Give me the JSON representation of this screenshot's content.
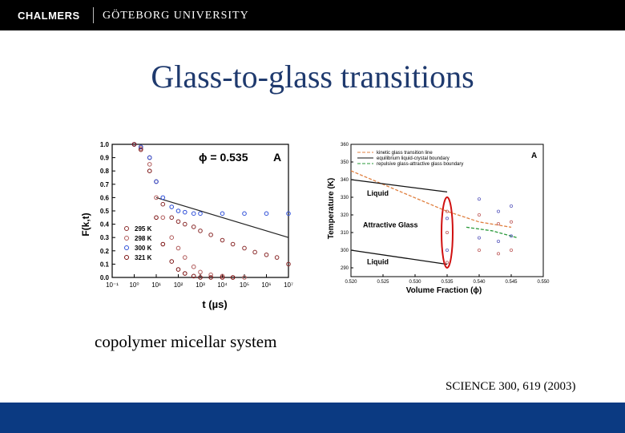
{
  "header": {
    "brand_primary": "CHALMERS",
    "brand_secondary": "GÖTEBORG UNIVERSITY"
  },
  "slide": {
    "title": "Glass-to-glass transitions",
    "caption": "copolymer micellar system",
    "citation": "SCIENCE 300, 619 (2003)"
  },
  "colors": {
    "title": "#1f3a6e",
    "footer_bar": "#0b3a82",
    "series_295": "#8a2b2b",
    "series_298": "#b05a5a",
    "series_300": "#2e4fd8",
    "series_321": "#7a1010"
  },
  "chart_data": [
    {
      "type": "scatter",
      "panel_label": "A",
      "annotation": "ϕ = 0.535",
      "xlabel": "t (µs)",
      "ylabel": "F(k,t)",
      "xscale": "log",
      "xlim": [
        0.1,
        10000000
      ],
      "ylim": [
        0.0,
        1.0
      ],
      "xtick_labels": [
        "10⁻¹",
        "10⁰",
        "10¹",
        "10²",
        "10³",
        "10⁴",
        "10⁵",
        "10⁶",
        "10⁷"
      ],
      "ytick_labels": [
        "0.0",
        "0.1",
        "0.2",
        "0.3",
        "0.4",
        "0.5",
        "0.6",
        "0.7",
        "0.8",
        "0.9",
        "1.0"
      ],
      "series": [
        {
          "name": "295 K",
          "x": [
            1,
            2,
            5,
            10,
            20,
            50,
            100,
            200,
            500,
            1000,
            3000,
            10000,
            30000,
            100000,
            300000,
            1000000,
            3000000,
            10000000
          ],
          "y": [
            1.0,
            0.98,
            0.9,
            0.72,
            0.55,
            0.45,
            0.42,
            0.4,
            0.38,
            0.35,
            0.32,
            0.28,
            0.25,
            0.22,
            0.19,
            0.17,
            0.15,
            0.1
          ]
        },
        {
          "name": "298 K",
          "x": [
            1,
            2,
            5,
            10,
            20,
            50,
            100,
            200,
            500,
            1000,
            3000,
            10000,
            30000,
            100000
          ],
          "y": [
            1.0,
            0.97,
            0.85,
            0.6,
            0.45,
            0.3,
            0.22,
            0.15,
            0.08,
            0.04,
            0.02,
            0.01,
            0.0,
            0.0
          ]
        },
        {
          "name": "300 K",
          "x": [
            1,
            2,
            5,
            10,
            20,
            50,
            100,
            200,
            500,
            1000,
            10000,
            100000,
            1000000,
            10000000
          ],
          "y": [
            1.0,
            0.98,
            0.9,
            0.72,
            0.6,
            0.53,
            0.5,
            0.49,
            0.48,
            0.48,
            0.48,
            0.48,
            0.48,
            0.48
          ]
        },
        {
          "name": "321 K",
          "x": [
            1,
            2,
            5,
            10,
            20,
            50,
            100,
            200,
            500,
            1000,
            3000,
            10000,
            30000
          ],
          "y": [
            1.0,
            0.96,
            0.8,
            0.45,
            0.25,
            0.12,
            0.06,
            0.03,
            0.01,
            0.0,
            0.0,
            0.0,
            0.0
          ]
        }
      ],
      "fit_line": {
        "x": [
          10,
          10000000
        ],
        "y": [
          0.6,
          0.3
        ]
      }
    },
    {
      "type": "scatter",
      "panel_label": "A",
      "xlabel": "Volume Fraction (ϕ)",
      "ylabel": "Temperature (K)",
      "xlim": [
        0.52,
        0.55
      ],
      "ylim": [
        285,
        360
      ],
      "xtick_labels": [
        "0.520",
        "0.525",
        "0.530",
        "0.535",
        "0.540",
        "0.545",
        "0.550"
      ],
      "ytick_labels": [
        "290",
        "300",
        "310",
        "320",
        "330",
        "340",
        "350",
        "360"
      ],
      "legend": [
        "kinetic glass transition line",
        "equilibrium liquid-crystal boundary",
        "repulsive glass-attractive glass boundary"
      ],
      "region_labels": [
        "Liquid",
        "Attractive Glass",
        "Liquid"
      ],
      "series": [
        {
          "name": "kinetic glass transition line",
          "x": [
            0.52,
            0.535,
            0.54,
            0.545
          ],
          "y": [
            345,
            322,
            316,
            313
          ]
        },
        {
          "name": "equilibrium liquid-crystal boundary",
          "x": [
            0.52,
            0.535
          ],
          "y": [
            340,
            333
          ]
        },
        {
          "name": "repulsive glass-attractive glass boundary",
          "x": [
            0.538,
            0.542,
            0.546
          ],
          "y": [
            313,
            311,
            307
          ]
        }
      ],
      "points": {
        "x": [
          0.535,
          0.535,
          0.535,
          0.535,
          0.535,
          0.54,
          0.54,
          0.54,
          0.54,
          0.543,
          0.543,
          0.543,
          0.543,
          0.545,
          0.545,
          0.545,
          0.545
        ],
        "y": [
          322,
          318,
          310,
          300,
          293,
          329,
          320,
          307,
          300,
          322,
          315,
          305,
          298,
          325,
          316,
          308,
          300
        ]
      },
      "highlight": {
        "x": 0.535,
        "ylim": [
          290,
          330
        ]
      }
    }
  ]
}
